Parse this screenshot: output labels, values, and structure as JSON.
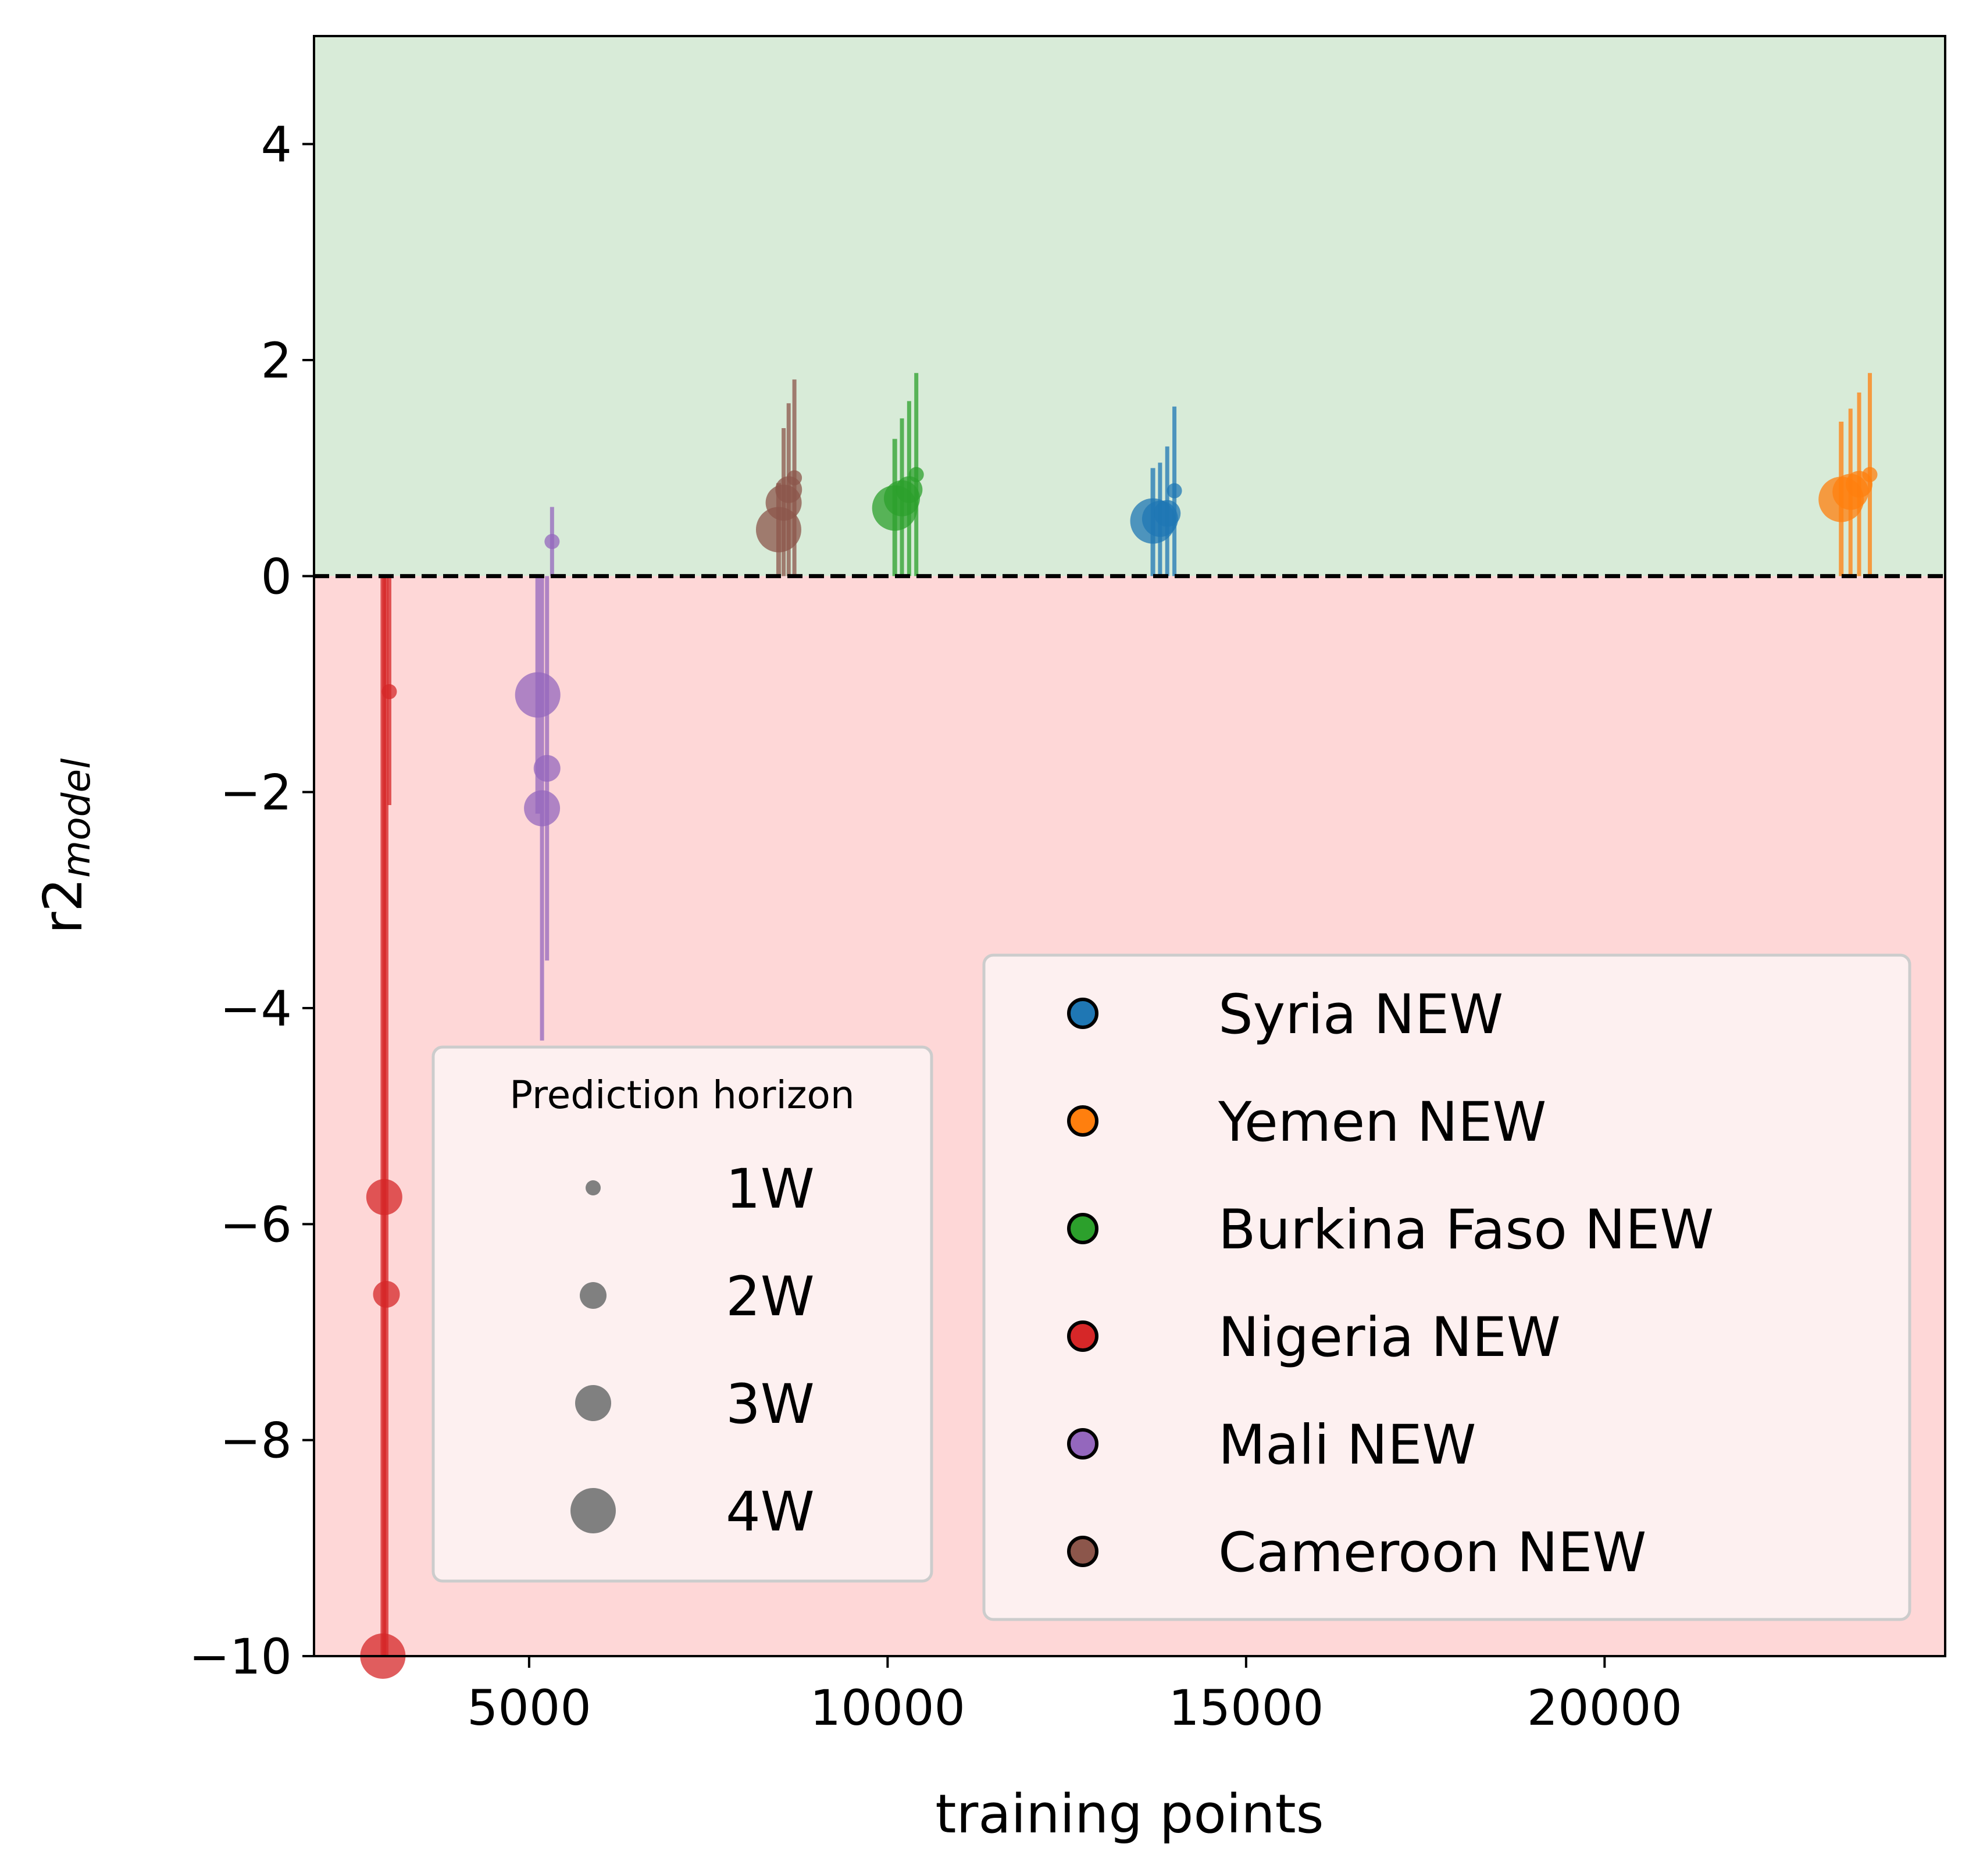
{
  "chart_data": {
    "type": "scatter",
    "title": "",
    "xlabel": "training points",
    "ylabel_main": "r2",
    "ylabel_sub": "model",
    "xlim": [
      2000,
      24750
    ],
    "ylim": [
      -10,
      5
    ],
    "xticks": [
      5000,
      10000,
      15000,
      20000
    ],
    "yticks": [
      4,
      2,
      0,
      -2,
      -4,
      -6,
      -8,
      -10
    ],
    "ytick_labels": [
      "4",
      "2",
      "0",
      "−2",
      "−4",
      "−6",
      "−8",
      "−10"
    ],
    "reference_line": {
      "y": 0,
      "style": "dashed",
      "color": "#000000"
    },
    "regions": [
      {
        "y_from": 0,
        "y_to": 5,
        "color": "#d8ebd8",
        "meaning": "positive"
      },
      {
        "y_from": -10,
        "y_to": 0,
        "color": "#fed7d7",
        "meaning": "negative"
      }
    ],
    "legend_horizon": {
      "title": "Prediction horizon",
      "entries": [
        "1W",
        "2W",
        "3W",
        "4W"
      ],
      "color": "#808080"
    },
    "legend_countries": {
      "placement": "lower-right"
    },
    "series": [
      {
        "name": "Syria NEW",
        "color": "#1f77b4",
        "points": [
          {
            "horizon": "1W",
            "x": 14000,
            "y": 0.79,
            "err_low": 0.0,
            "err_high": 1.57
          },
          {
            "horizon": "2W",
            "x": 13900,
            "y": 0.58,
            "err_low": 0.0,
            "err_high": 1.2
          },
          {
            "horizon": "3W",
            "x": 13800,
            "y": 0.53,
            "err_low": 0.0,
            "err_high": 1.05
          },
          {
            "horizon": "4W",
            "x": 13700,
            "y": 0.51,
            "err_low": 0.0,
            "err_high": 1.0
          }
        ]
      },
      {
        "name": "Yemen NEW",
        "color": "#ff7f0e",
        "points": [
          {
            "horizon": "1W",
            "x": 23700,
            "y": 0.94,
            "err_low": 0.0,
            "err_high": 1.88
          },
          {
            "horizon": "2W",
            "x": 23550,
            "y": 0.85,
            "err_low": 0.0,
            "err_high": 1.7
          },
          {
            "horizon": "3W",
            "x": 23430,
            "y": 0.78,
            "err_low": 0.0,
            "err_high": 1.55
          },
          {
            "horizon": "4W",
            "x": 23300,
            "y": 0.71,
            "err_low": 0.0,
            "err_high": 1.43
          }
        ]
      },
      {
        "name": "Burkina Faso NEW",
        "color": "#2ca02c",
        "points": [
          {
            "horizon": "1W",
            "x": 10400,
            "y": 0.94,
            "err_low": 0.0,
            "err_high": 1.88
          },
          {
            "horizon": "2W",
            "x": 10300,
            "y": 0.8,
            "err_low": 0.0,
            "err_high": 1.62
          },
          {
            "horizon": "3W",
            "x": 10200,
            "y": 0.72,
            "err_low": 0.0,
            "err_high": 1.46
          },
          {
            "horizon": "4W",
            "x": 10100,
            "y": 0.63,
            "err_low": 0.0,
            "err_high": 1.27
          }
        ]
      },
      {
        "name": "Nigeria NEW",
        "color": "#d62728",
        "points": [
          {
            "horizon": "1W",
            "x": 3050,
            "y": -1.07,
            "err_low": -2.12,
            "err_high": 0.0
          },
          {
            "horizon": "2W",
            "x": 3010,
            "y": -6.65,
            "err_low": -10,
            "err_high": 0.0
          },
          {
            "horizon": "3W",
            "x": 2980,
            "y": -5.75,
            "err_low": -10,
            "err_high": 0.0
          },
          {
            "horizon": "4W",
            "x": 2960,
            "y": -10.0,
            "err_low": -10,
            "err_high": 0.0
          }
        ]
      },
      {
        "name": "Mali NEW",
        "color": "#9467bd",
        "points": [
          {
            "horizon": "1W",
            "x": 5320,
            "y": 0.32,
            "err_low": 0.0,
            "err_high": 0.64
          },
          {
            "horizon": "2W",
            "x": 5250,
            "y": -1.78,
            "err_low": -3.56,
            "err_high": 0.0
          },
          {
            "horizon": "3W",
            "x": 5180,
            "y": -2.15,
            "err_low": -4.3,
            "err_high": 0.0
          },
          {
            "horizon": "4W",
            "x": 5120,
            "y": -1.1,
            "err_low": -2.2,
            "err_high": 0.0
          }
        ]
      },
      {
        "name": "Cameroon NEW",
        "color": "#8c564b",
        "points": [
          {
            "horizon": "1W",
            "x": 8700,
            "y": 0.91,
            "err_low": 0.0,
            "err_high": 1.82
          },
          {
            "horizon": "2W",
            "x": 8620,
            "y": 0.8,
            "err_low": 0.0,
            "err_high": 1.6
          },
          {
            "horizon": "3W",
            "x": 8550,
            "y": 0.68,
            "err_low": 0.0,
            "err_high": 1.37
          },
          {
            "horizon": "4W",
            "x": 8480,
            "y": 0.43,
            "err_low": 0.0,
            "err_high": 0.86
          }
        ]
      }
    ]
  }
}
